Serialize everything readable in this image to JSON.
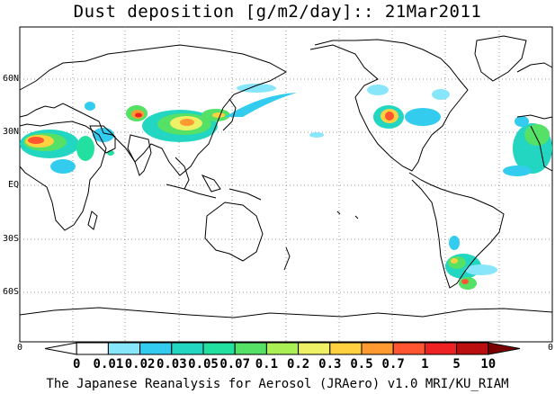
{
  "title": "Dust deposition [g/m2/day]:: 21Mar2011",
  "lat_labels": [
    "60N",
    "30N",
    "EQ",
    "30S",
    "60S"
  ],
  "axis_edge_values": {
    "left": "0",
    "right": "0"
  },
  "colorbar": {
    "labels": [
      "0",
      "0.01",
      "0.02",
      "0.03",
      "0.05",
      "0.07",
      "0.1",
      "0.2",
      "0.3",
      "0.5",
      "0.7",
      "1",
      "5",
      "10"
    ],
    "colors": [
      "#ffffff",
      "#ffffff",
      "#88e6fa",
      "#33ccee",
      "#22d6c2",
      "#22e0a0",
      "#55e066",
      "#aaf055",
      "#eef066",
      "#ffd040",
      "#ff9a30",
      "#ff5530",
      "#ee2222",
      "#bb0e0e",
      "#7a0000"
    ]
  },
  "footer": "The Japanese Reanalysis for Aerosol (JRAero) v1.0 MRI/KU_RIAM"
}
